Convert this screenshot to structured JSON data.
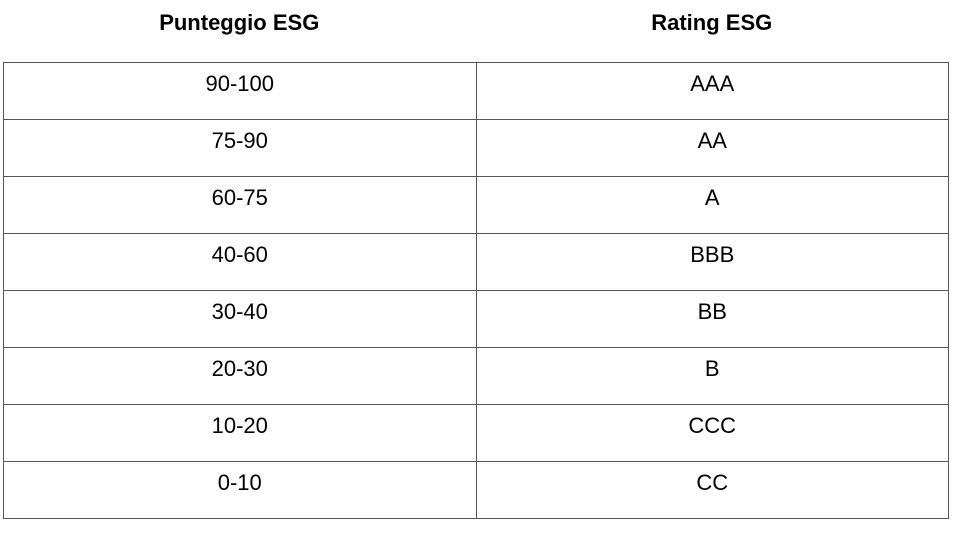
{
  "table": {
    "headers": [
      "Punteggio ESG",
      "Rating ESG"
    ],
    "rows": [
      [
        "90-100",
        "AAA"
      ],
      [
        "75-90",
        "AA"
      ],
      [
        "60-75",
        "A"
      ],
      [
        "40-60",
        "BBB"
      ],
      [
        "30-40",
        "BB"
      ],
      [
        "20-30",
        "B"
      ],
      [
        "10-20",
        "CCC"
      ],
      [
        "0-10",
        "CC"
      ]
    ]
  }
}
